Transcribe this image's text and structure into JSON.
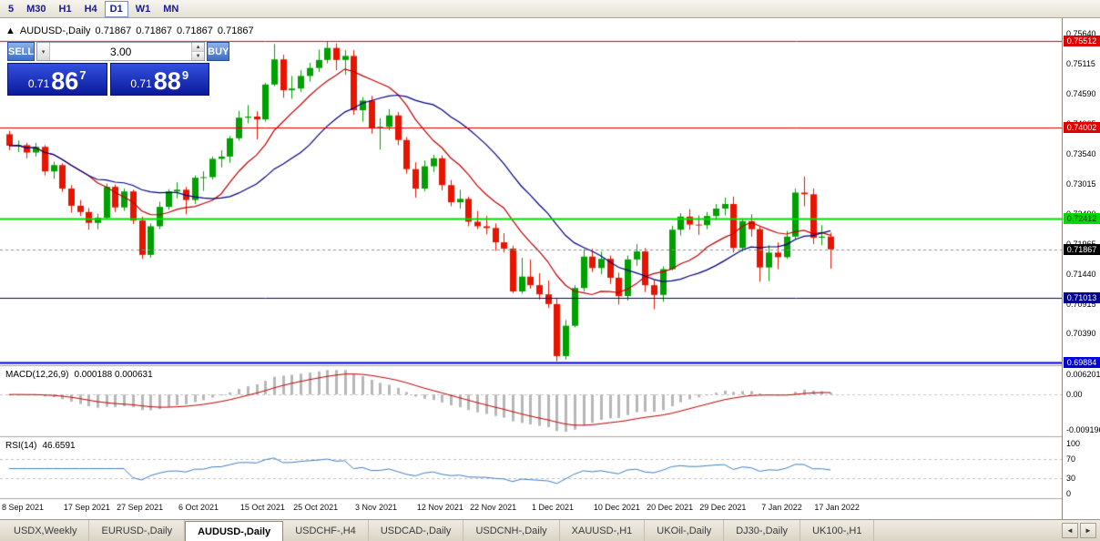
{
  "toolbar": {
    "timeframes": [
      {
        "label": "5",
        "active": false
      },
      {
        "label": "M30",
        "active": false
      },
      {
        "label": "H1",
        "active": false
      },
      {
        "label": "H4",
        "active": false
      },
      {
        "label": "D1",
        "active": true
      },
      {
        "label": "W1",
        "active": false
      },
      {
        "label": "MN",
        "active": false
      }
    ]
  },
  "chart_header": {
    "marker": "▲",
    "symbol": "AUDUSD-,Daily",
    "open": "0.71867",
    "high": "0.71867",
    "low": "0.71867",
    "close": "0.71867"
  },
  "trade_panel": {
    "sell_label": "SELL",
    "buy_label": "BUY",
    "volume": "3.00",
    "dropdown_glyph": "▾",
    "up_glyph": "▲",
    "down_glyph": "▼",
    "bid": {
      "prefix": "0.71",
      "big": "86",
      "sup": "7"
    },
    "ask": {
      "prefix": "0.71",
      "big": "88",
      "sup": "9"
    }
  },
  "chart_data": {
    "type": "candlestick",
    "symbol": "AUDUSD",
    "timeframe": "Daily",
    "ylim": [
      0.6984,
      0.7591
    ],
    "colors": {
      "up": "#00A000",
      "down": "#E81400",
      "background": "#FFFFFF"
    },
    "price_ticks": [
      "0.75640",
      "0.75115",
      "0.74590",
      "0.74065",
      "0.73540",
      "0.73015",
      "0.72490",
      "0.71965",
      "0.71440",
      "0.70915",
      "0.70390",
      "0.69865"
    ],
    "levels": [
      {
        "value": 0.75512,
        "label": "0.75512",
        "color": "#E00000",
        "text_color": "#FFFFFF",
        "width": 1
      },
      {
        "value": 0.74002,
        "label": "0.74002",
        "color": "#E00000",
        "text_color": "#FFFFFF",
        "width": 1
      },
      {
        "value": 0.72412,
        "label": "0.72412",
        "color": "#00DC00",
        "text_color": "#003000",
        "width": 2
      },
      {
        "value": 0.71013,
        "label": "0.71013",
        "color": "#000090",
        "text_color": "#FFFFFF",
        "width": 1
      },
      {
        "value": 0.69884,
        "label": "0.69884",
        "color": "#0000DC",
        "text_color": "#FFFFFF",
        "width": 2
      }
    ],
    "current_price": {
      "value": 0.71867,
      "label": "0.71867",
      "badge_bg": "#000000",
      "badge_fg": "#FFFFFF"
    },
    "candles": [
      [
        0.7388,
        0.7394,
        0.736,
        0.7368
      ],
      [
        0.7368,
        0.7377,
        0.7357,
        0.7369
      ],
      [
        0.7369,
        0.7373,
        0.7346,
        0.7356
      ],
      [
        0.7356,
        0.7373,
        0.7349,
        0.7366
      ],
      [
        0.7366,
        0.7369,
        0.7316,
        0.7323
      ],
      [
        0.7323,
        0.734,
        0.731,
        0.7334
      ],
      [
        0.7334,
        0.7337,
        0.7287,
        0.7293
      ],
      [
        0.7293,
        0.7299,
        0.7251,
        0.7263
      ],
      [
        0.7263,
        0.7273,
        0.7245,
        0.7252
      ],
      [
        0.7252,
        0.7259,
        0.7221,
        0.7233
      ],
      [
        0.7233,
        0.7249,
        0.7222,
        0.7242
      ],
      [
        0.7242,
        0.7302,
        0.7239,
        0.7296
      ],
      [
        0.7296,
        0.73,
        0.7252,
        0.726
      ],
      [
        0.726,
        0.7293,
        0.7254,
        0.7288
      ],
      [
        0.7288,
        0.7291,
        0.7231,
        0.7237
      ],
      [
        0.7237,
        0.7244,
        0.717,
        0.7177
      ],
      [
        0.7177,
        0.7232,
        0.7172,
        0.7227
      ],
      [
        0.7227,
        0.727,
        0.7222,
        0.7261
      ],
      [
        0.7261,
        0.7292,
        0.7256,
        0.7288
      ],
      [
        0.7288,
        0.7304,
        0.7276,
        0.7291
      ],
      [
        0.7291,
        0.7296,
        0.7248,
        0.7273
      ],
      [
        0.7273,
        0.7316,
        0.7266,
        0.7312
      ],
      [
        0.7312,
        0.7323,
        0.7289,
        0.7313
      ],
      [
        0.7313,
        0.7349,
        0.7309,
        0.7345
      ],
      [
        0.7345,
        0.736,
        0.733,
        0.7349
      ],
      [
        0.7349,
        0.7385,
        0.7338,
        0.7381
      ],
      [
        0.7381,
        0.7429,
        0.7377,
        0.7417
      ],
      [
        0.7417,
        0.7439,
        0.7407,
        0.7419
      ],
      [
        0.7419,
        0.7428,
        0.7379,
        0.7414
      ],
      [
        0.7414,
        0.7478,
        0.741,
        0.7475
      ],
      [
        0.7475,
        0.7546,
        0.7472,
        0.7519
      ],
      [
        0.7519,
        0.7527,
        0.7452,
        0.7465
      ],
      [
        0.7465,
        0.749,
        0.745,
        0.7468
      ],
      [
        0.7468,
        0.75,
        0.7462,
        0.749
      ],
      [
        0.749,
        0.7513,
        0.748,
        0.7504
      ],
      [
        0.7504,
        0.7536,
        0.7497,
        0.7518
      ],
      [
        0.7518,
        0.7551,
        0.7512,
        0.7539
      ],
      [
        0.7539,
        0.7547,
        0.75,
        0.7518
      ],
      [
        0.7518,
        0.7535,
        0.7492,
        0.7525
      ],
      [
        0.7525,
        0.7535,
        0.7422,
        0.743
      ],
      [
        0.743,
        0.7453,
        0.741,
        0.7447
      ],
      [
        0.7447,
        0.7455,
        0.7389,
        0.7399
      ],
      [
        0.7399,
        0.7416,
        0.7361,
        0.7401
      ],
      [
        0.7401,
        0.7432,
        0.7395,
        0.7421
      ],
      [
        0.7421,
        0.7427,
        0.7369,
        0.7378
      ],
      [
        0.7378,
        0.7383,
        0.7319,
        0.7327
      ],
      [
        0.7327,
        0.7339,
        0.7277,
        0.7293
      ],
      [
        0.7293,
        0.7342,
        0.7288,
        0.7332
      ],
      [
        0.7332,
        0.7352,
        0.7322,
        0.7346
      ],
      [
        0.7346,
        0.7351,
        0.729,
        0.7299
      ],
      [
        0.7299,
        0.7308,
        0.7262,
        0.7269
      ],
      [
        0.7269,
        0.7291,
        0.7258,
        0.7275
      ],
      [
        0.7275,
        0.7279,
        0.7227,
        0.7235
      ],
      [
        0.7235,
        0.7254,
        0.7222,
        0.7227
      ],
      [
        0.7227,
        0.7245,
        0.7213,
        0.7224
      ],
      [
        0.7224,
        0.7232,
        0.7184,
        0.7199
      ],
      [
        0.7199,
        0.7215,
        0.7181,
        0.7188
      ],
      [
        0.7188,
        0.7193,
        0.711,
        0.7113
      ],
      [
        0.7113,
        0.7172,
        0.7109,
        0.7139
      ],
      [
        0.7139,
        0.7169,
        0.7118,
        0.7124
      ],
      [
        0.7124,
        0.7145,
        0.7099,
        0.7108
      ],
      [
        0.7108,
        0.7132,
        0.7084,
        0.7091
      ],
      [
        0.7091,
        0.7102,
        0.6991,
        0.7
      ],
      [
        0.7,
        0.7063,
        0.6994,
        0.7053
      ],
      [
        0.7053,
        0.7124,
        0.705,
        0.7119
      ],
      [
        0.7119,
        0.7187,
        0.7113,
        0.7174
      ],
      [
        0.7174,
        0.7188,
        0.7147,
        0.7154
      ],
      [
        0.7154,
        0.7183,
        0.7143,
        0.717
      ],
      [
        0.717,
        0.7176,
        0.7126,
        0.7137
      ],
      [
        0.7137,
        0.7146,
        0.709,
        0.7105
      ],
      [
        0.7105,
        0.7176,
        0.7097,
        0.7169
      ],
      [
        0.7169,
        0.7196,
        0.7158,
        0.7183
      ],
      [
        0.7183,
        0.7189,
        0.7112,
        0.7124
      ],
      [
        0.7124,
        0.7133,
        0.7082,
        0.7107
      ],
      [
        0.7107,
        0.7157,
        0.7095,
        0.7152
      ],
      [
        0.7152,
        0.7228,
        0.715,
        0.7221
      ],
      [
        0.7221,
        0.725,
        0.7211,
        0.7244
      ],
      [
        0.7244,
        0.7257,
        0.7221,
        0.723
      ],
      [
        0.723,
        0.7246,
        0.7212,
        0.7229
      ],
      [
        0.7229,
        0.7252,
        0.7222,
        0.7245
      ],
      [
        0.7245,
        0.7266,
        0.7238,
        0.7258
      ],
      [
        0.7258,
        0.7277,
        0.7246,
        0.7266
      ],
      [
        0.7266,
        0.7279,
        0.7181,
        0.7189
      ],
      [
        0.7189,
        0.7241,
        0.7183,
        0.7236
      ],
      [
        0.7236,
        0.7248,
        0.7209,
        0.7222
      ],
      [
        0.7222,
        0.7227,
        0.713,
        0.7155
      ],
      [
        0.7155,
        0.7194,
        0.7131,
        0.7181
      ],
      [
        0.7181,
        0.7199,
        0.7152,
        0.7173
      ],
      [
        0.7173,
        0.7219,
        0.717,
        0.7209
      ],
      [
        0.7209,
        0.7293,
        0.7203,
        0.7286
      ],
      [
        0.7286,
        0.7314,
        0.7262,
        0.7283
      ],
      [
        0.7283,
        0.7293,
        0.7196,
        0.7207
      ],
      [
        0.7207,
        0.7229,
        0.7194,
        0.7209
      ],
      [
        0.7209,
        0.7216,
        0.7153,
        0.71867
      ]
    ],
    "date_ticks": [
      {
        "i": 0,
        "label": "8 Sep 2021"
      },
      {
        "i": 7,
        "label": "17 Sep 2021"
      },
      {
        "i": 13,
        "label": "27 Sep 2021"
      },
      {
        "i": 20,
        "label": "6 Oct 2021"
      },
      {
        "i": 27,
        "label": "15 Oct 2021"
      },
      {
        "i": 33,
        "label": "25 Oct 2021"
      },
      {
        "i": 40,
        "label": "3 Nov 2021"
      },
      {
        "i": 47,
        "label": "12 Nov 2021"
      },
      {
        "i": 53,
        "label": "22 Nov 2021"
      },
      {
        "i": 60,
        "label": "1 Dec 2021"
      },
      {
        "i": 67,
        "label": "10 Dec 2021"
      },
      {
        "i": 73,
        "label": "20 Dec 2021"
      },
      {
        "i": 79,
        "label": "29 Dec 2021"
      },
      {
        "i": 86,
        "label": "7 Jan 2022"
      },
      {
        "i": 92,
        "label": "17 Jan 2022"
      }
    ],
    "ma_fast": {
      "period": 10,
      "color": "#C00000"
    },
    "ma_slow": {
      "period": 20,
      "color": "#000080"
    },
    "macd": {
      "label": "MACD(12,26,9)",
      "values": "0.000188 0.000631",
      "axis": {
        "top": "0.006201",
        "zero": "0.00",
        "bottom": "-0.009196"
      },
      "hist_color": "#B8B8B8",
      "signal_color": "#C00000"
    },
    "rsi": {
      "label": "RSI(14)",
      "value": "46.6591",
      "color": "#4080C0",
      "ylim": [
        0,
        100
      ],
      "levels": [
        30,
        70
      ],
      "ticks": [
        100,
        70,
        30,
        0
      ]
    }
  },
  "tabs": {
    "items": [
      {
        "label": "USDX,Weekly",
        "active": false
      },
      {
        "label": "EURUSD-,Daily",
        "active": false
      },
      {
        "label": "AUDUSD-,Daily",
        "active": true
      },
      {
        "label": "USDCHF-,H4",
        "active": false
      },
      {
        "label": "USDCAD-,Daily",
        "active": false
      },
      {
        "label": "USDCNH-,Daily",
        "active": false
      },
      {
        "label": "XAUUSD-,H1",
        "active": false
      },
      {
        "label": "UKOil-,Daily",
        "active": false
      },
      {
        "label": "DJ30-,Daily",
        "active": false
      },
      {
        "label": "UK100-,H1",
        "active": false
      }
    ],
    "scroll_left": "◄",
    "scroll_right": "►"
  }
}
